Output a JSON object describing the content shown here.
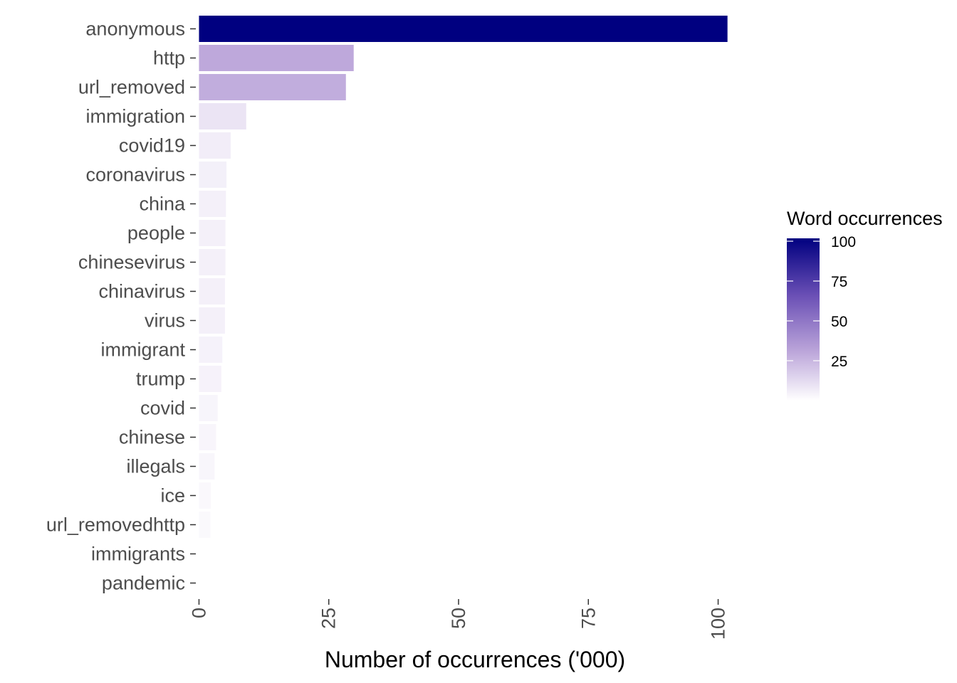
{
  "chart_data": {
    "type": "bar",
    "orientation": "horizontal",
    "categories": [
      "anonymous",
      "http",
      "url_removed",
      "immigration",
      "covid19",
      "coronavirus",
      "china",
      "people",
      "chinesevirus",
      "chinavirus",
      "virus",
      "immigrant",
      "trump",
      "covid",
      "chinese",
      "illegals",
      "ice",
      "url_removedhttp",
      "immigrants",
      "pandemic"
    ],
    "values": [
      101.8,
      29.8,
      28.3,
      9.1,
      6.1,
      5.3,
      5.2,
      5.1,
      5.1,
      5.0,
      5.0,
      4.5,
      4.3,
      3.6,
      3.3,
      3.0,
      2.3,
      2.2,
      0.0,
      0.0
    ],
    "xlabel": "Number of occurrences ('000)",
    "ylabel": "",
    "xlim": [
      -0.2,
      105
    ],
    "xticks": [
      0,
      25,
      50,
      75,
      100
    ],
    "xtick_labels": [
      "0",
      "25",
      "50",
      "75",
      "100"
    ],
    "grid": false,
    "legend": {
      "title": "Word occurrences",
      "placement": "right",
      "type": "colorbar",
      "ticks": [
        100,
        75,
        50,
        25
      ],
      "tick_labels": [
        "100",
        "75",
        "50",
        "25"
      ],
      "range": [
        0,
        101.8
      ]
    },
    "colors": {
      "low": "#ffffff",
      "high": "#000080",
      "mid": "#bca6da"
    }
  }
}
